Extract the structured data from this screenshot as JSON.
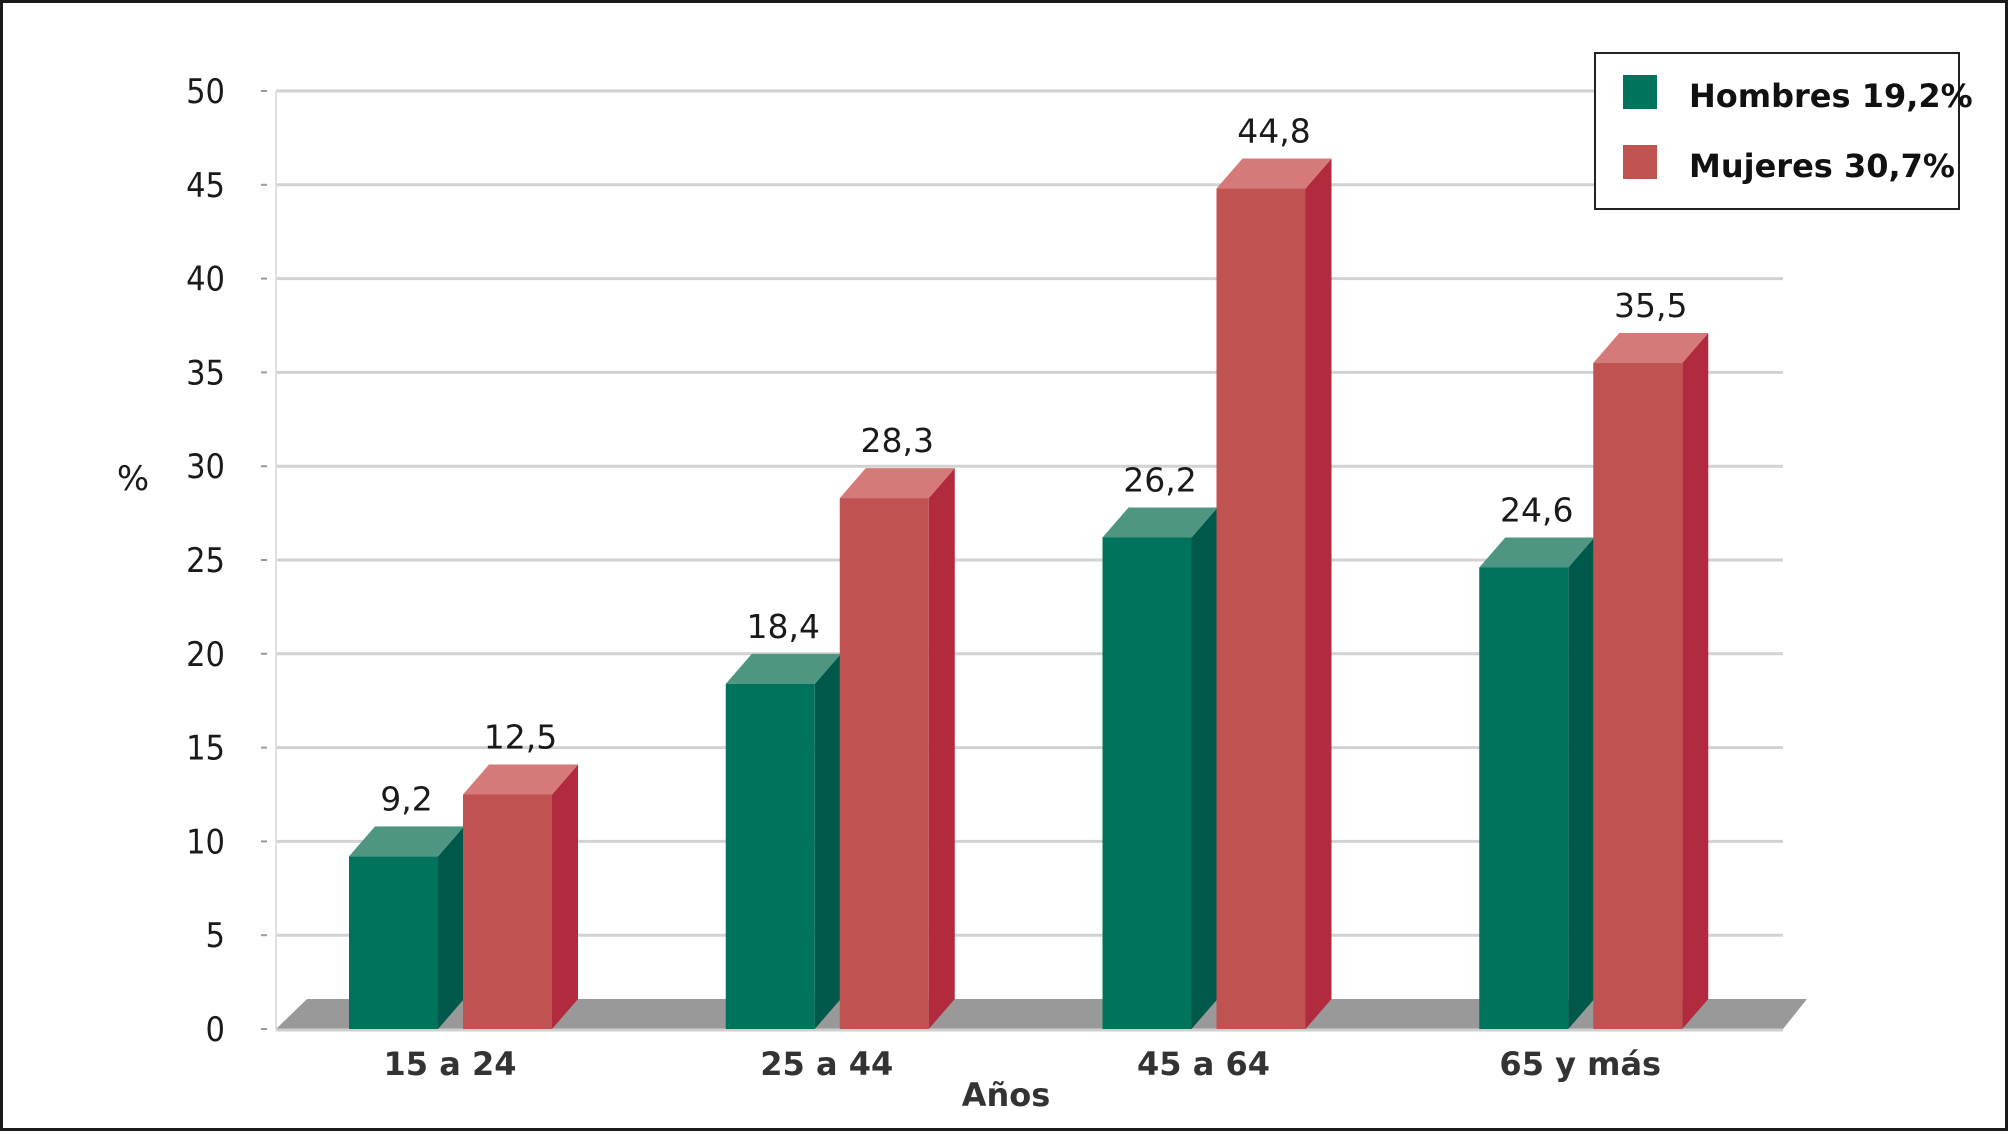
{
  "chart_data": {
    "type": "bar",
    "categories": [
      "15 a 24",
      "25 a 44",
      "45 a 64",
      "65 y más"
    ],
    "series": [
      {
        "name": "Hombres 19,2%",
        "values": [
          9.2,
          18.4,
          26.2,
          24.6
        ],
        "labels": [
          "9,2",
          "18,4",
          "26,2",
          "24,6"
        ],
        "color": "#00735C"
      },
      {
        "name": "Mujeres 30,7%",
        "values": [
          12.5,
          28.3,
          44.8,
          35.5
        ],
        "labels": [
          "12,5",
          "28,3",
          "44,8",
          "35,5"
        ],
        "color": "#C15252"
      }
    ],
    "xlabel": "Años",
    "ylabel": "%",
    "ylim": [
      0,
      50
    ],
    "yticks": [
      "0",
      "5",
      "10",
      "15",
      "20",
      "25",
      "30",
      "35",
      "40",
      "45",
      "50"
    ],
    "grid": true,
    "legend_position": "top-right",
    "style": "3d"
  }
}
